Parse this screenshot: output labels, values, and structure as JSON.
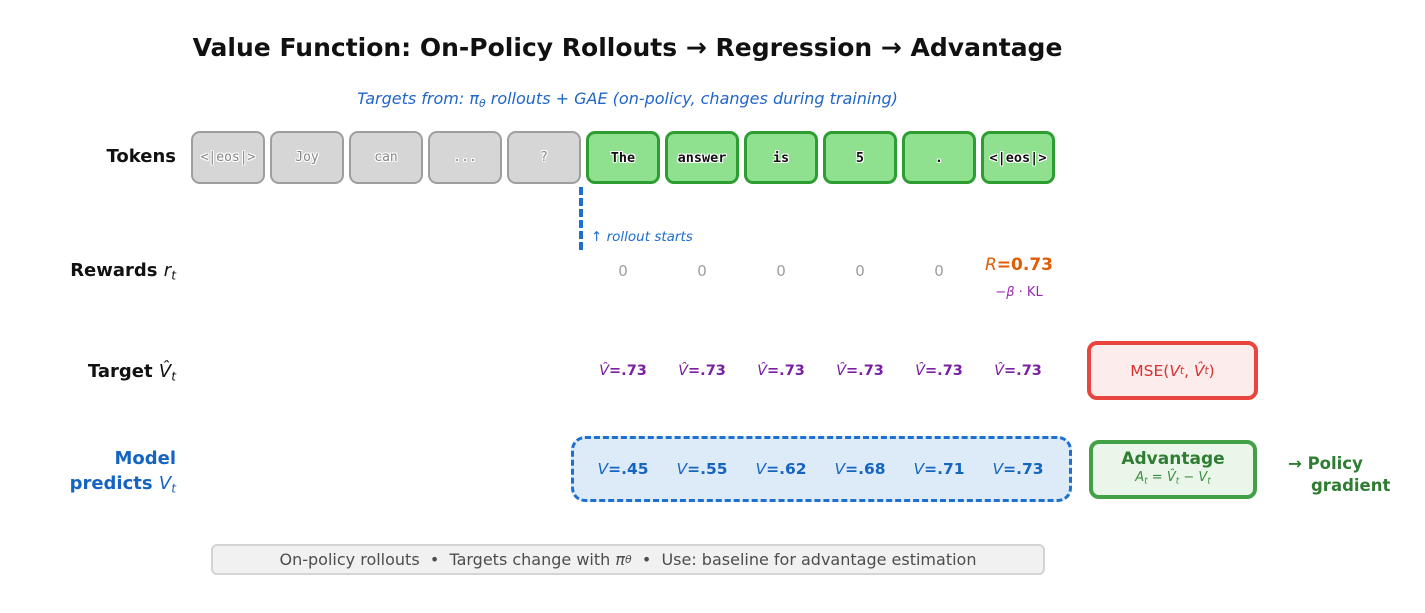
{
  "header": {
    "title": "Value Function: On-Policy Rollouts → Regression → Advantage",
    "subtitle_segments": [
      {
        "t": "Targets from: π",
        "s": "i"
      },
      {
        "t": "θ",
        "s": "i sub"
      },
      {
        "t": " rollouts + GAE (on-policy, changes during training)",
        "s": "i"
      }
    ]
  },
  "tokens_row": {
    "label": "Tokens",
    "prompt_tokens": [
      "<|eos|>",
      "Joy",
      "can",
      "...",
      "?"
    ],
    "rollout_tokens": [
      "The",
      "answer",
      "is",
      "5",
      ".",
      "<|eos|>"
    ]
  },
  "rollout_marker": {
    "note": "↑ rollout starts"
  },
  "rewards_row": {
    "label_segments": [
      {
        "t": "Rewards ",
        "s": "b"
      },
      {
        "t": "r",
        "s": "i"
      },
      {
        "t": "t",
        "s": "i sub"
      }
    ],
    "zeros": [
      "0",
      "0",
      "0",
      "0",
      "0"
    ],
    "final_reward_segments": [
      {
        "t": "R",
        "s": "i"
      },
      {
        "t": "=0.73",
        "s": "b"
      }
    ],
    "kl_segments": [
      {
        "t": "−"
      },
      {
        "t": "β",
        "s": "i"
      },
      {
        "t": " · KL"
      }
    ]
  },
  "target_row": {
    "label_segments": [
      {
        "t": "Target ",
        "s": "b"
      },
      {
        "t": "V̂",
        "s": "i"
      },
      {
        "t": "t",
        "s": "i sub"
      }
    ],
    "var": "V̂",
    "values": [
      "=.73",
      "=.73",
      "=.73",
      "=.73",
      "=.73",
      "=.73"
    ]
  },
  "mse_box": {
    "segments": [
      {
        "t": "MSE("
      },
      {
        "t": "V",
        "s": "i"
      },
      {
        "t": "t",
        "s": "i sub"
      },
      {
        "t": ", "
      },
      {
        "t": "V̂",
        "s": "i"
      },
      {
        "t": "t",
        "s": "i sub"
      },
      {
        "t": ")"
      }
    ]
  },
  "model_row": {
    "label_line1_segments": [
      {
        "t": "Model",
        "s": "b"
      }
    ],
    "label_line2_segments": [
      {
        "t": "predicts ",
        "s": "b"
      },
      {
        "t": "V",
        "s": "i"
      },
      {
        "t": "t",
        "s": "i sub"
      }
    ],
    "var": "V",
    "values": [
      "=.45",
      "=.55",
      "=.62",
      "=.68",
      "=.71",
      "=.73"
    ]
  },
  "advantage_box": {
    "title": "Advantage",
    "formula_segments": [
      {
        "t": "A",
        "s": "i"
      },
      {
        "t": "t",
        "s": "i sub"
      },
      {
        "t": " = "
      },
      {
        "t": "V̂",
        "s": "i"
      },
      {
        "t": "t",
        "s": "i sub"
      },
      {
        "t": " − "
      },
      {
        "t": "V",
        "s": "i"
      },
      {
        "t": "t",
        "s": "i sub"
      }
    ]
  },
  "policy_gradient": {
    "line1": "→ Policy",
    "line2": "gradient"
  },
  "footer": {
    "note_segments": [
      {
        "t": "On-policy rollouts  •  Targets change with "
      },
      {
        "t": "π",
        "s": "i"
      },
      {
        "t": "θ",
        "s": "i sub"
      },
      {
        "t": "  •  Use: baseline for advantage estimation"
      }
    ]
  },
  "colors": {
    "accent_blue": "#1e6fd0",
    "purple": "#7b1fa2",
    "orange": "#e25c04",
    "red": "#e8453f",
    "green_border": "#2e9e32",
    "green_dark": "#2e7d32"
  }
}
